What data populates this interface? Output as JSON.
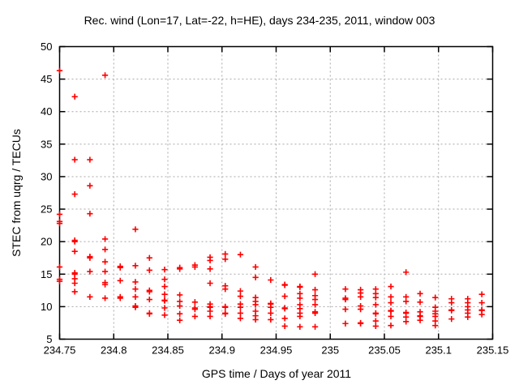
{
  "chart": {
    "title": "Rec. wind (Lon=17, Lat=-22, h=HE), days 234-235, 2011, window 003",
    "xlabel": "GPS time / Days of year 2011",
    "ylabel": "STEC from uqrg / TECUs"
  },
  "chart_data": {
    "type": "scatter",
    "title": "Rec. wind (Lon=17, Lat=-22, h=HE), days 234-235, 2011, window 003",
    "xlabel": "GPS time / Days of year 2011",
    "ylabel": "STEC from uqrg / TECUs",
    "xlim": [
      234.75,
      235.15
    ],
    "ylim": [
      5,
      50
    ],
    "xtick_values": [
      234.75,
      234.8,
      234.85,
      234.9,
      234.95,
      235,
      235.05,
      235.1,
      235.15
    ],
    "xtick_labels": [
      "234.75",
      "234.8",
      "234.85",
      "234.9",
      "234.95",
      "235",
      "235.05",
      "235.1",
      "235.15"
    ],
    "ytick_values": [
      5,
      10,
      15,
      20,
      25,
      30,
      35,
      40,
      45,
      50
    ],
    "ytick_labels": [
      "5",
      "10",
      "15",
      "20",
      "25",
      "30",
      "35",
      "40",
      "45",
      "50"
    ],
    "grid": true,
    "legend": "none",
    "marker": "plus",
    "marker_color": "#ff0000",
    "grid_color": "#a8a8a8",
    "axis_color": "#000000",
    "series": [
      {
        "name": "STEC",
        "columns": [
          {
            "x": 234.75,
            "values": [
              46.3,
              24.2,
              23.1,
              22.8,
              16.1,
              14.2,
              13.9
            ]
          },
          {
            "x": 234.764,
            "values": [
              42.3,
              32.6,
              27.3,
              20.2,
              20.0,
              18.5,
              15.2,
              15.0,
              14.3,
              13.6,
              12.3
            ]
          },
          {
            "x": 234.778,
            "values": [
              32.6,
              28.6,
              24.3,
              17.7,
              17.5,
              15.4,
              11.5
            ]
          },
          {
            "x": 234.792,
            "values": [
              45.6,
              20.4,
              18.8,
              16.9,
              15.4,
              13.7,
              13.4,
              11.3
            ]
          },
          {
            "x": 234.806,
            "values": [
              16.2,
              16.0,
              14.0,
              11.5,
              11.3
            ]
          },
          {
            "x": 234.82,
            "values": [
              21.9,
              16.3,
              13.8,
              12.7,
              11.5,
              10.1,
              9.9
            ]
          },
          {
            "x": 234.833,
            "values": [
              17.5,
              15.6,
              12.5,
              12.3,
              11.1,
              9.0,
              8.9
            ]
          },
          {
            "x": 234.847,
            "values": [
              15.7,
              14.2,
              13.1,
              11.9,
              11.0,
              10.9,
              9.8,
              8.7
            ]
          },
          {
            "x": 234.861,
            "values": [
              16.0,
              15.8,
              11.8,
              10.8,
              10.1,
              8.9,
              7.9
            ]
          },
          {
            "x": 234.875,
            "values": [
              16.4,
              16.1,
              10.7,
              9.8,
              9.6,
              8.5
            ]
          },
          {
            "x": 234.889,
            "values": [
              17.6,
              17.1,
              15.8,
              13.6,
              10.4,
              10.0,
              9.9,
              9.3,
              8.5
            ]
          },
          {
            "x": 234.903,
            "values": [
              18.1,
              17.3,
              13.2,
              12.7,
              10.0,
              9.9,
              9.0,
              8.9
            ]
          },
          {
            "x": 234.917,
            "values": [
              18.0,
              12.4,
              11.6,
              10.4,
              9.9,
              9.0,
              8.2
            ]
          },
          {
            "x": 234.931,
            "values": [
              16.1,
              14.5,
              11.4,
              10.8,
              10.3,
              9.3,
              8.6,
              8.0
            ]
          },
          {
            "x": 234.945,
            "values": [
              14.1,
              10.5,
              10.4,
              9.9,
              9.0,
              8.0
            ]
          },
          {
            "x": 234.958,
            "values": [
              13.4,
              13.3,
              11.6,
              9.8,
              9.7,
              8.2,
              7.0
            ]
          },
          {
            "x": 234.972,
            "values": [
              13.1,
              13.0,
              12.0,
              11.3,
              10.3,
              9.7,
              9.0,
              8.5,
              6.9
            ]
          },
          {
            "x": 234.986,
            "values": [
              15.0,
              12.6,
              11.7,
              11.1,
              10.3,
              9.2,
              9.0,
              6.9
            ]
          },
          {
            "x": 235.014,
            "values": [
              12.7,
              11.3,
              11.1,
              9.6,
              7.4
            ]
          },
          {
            "x": 235.028,
            "values": [
              12.6,
              12.1,
              11.5,
              10.1,
              9.6,
              7.5,
              7.4
            ]
          },
          {
            "x": 235.042,
            "values": [
              12.7,
              12.0,
              11.4,
              10.3,
              9.0,
              8.9,
              7.8,
              7.0
            ]
          },
          {
            "x": 235.056,
            "values": [
              13.1,
              11.5,
              10.6,
              9.4,
              9.3,
              8.5,
              7.1
            ]
          },
          {
            "x": 235.07,
            "values": [
              15.3,
              11.5,
              10.8,
              9.1,
              9.0,
              8.4,
              7.7
            ]
          },
          {
            "x": 235.083,
            "values": [
              12.0,
              10.7,
              9.2,
              8.6,
              8.5,
              7.9
            ]
          },
          {
            "x": 235.097,
            "values": [
              11.4,
              9.9,
              9.3,
              8.9,
              8.5,
              7.8,
              7.1
            ]
          },
          {
            "x": 235.112,
            "values": [
              11.2,
              10.6,
              9.5,
              9.4,
              8.1
            ]
          },
          {
            "x": 235.127,
            "values": [
              11.2,
              10.6,
              10.0,
              9.5,
              9.0,
              8.4
            ]
          },
          {
            "x": 235.14,
            "values": [
              11.9,
              10.6,
              9.5,
              9.4,
              8.8
            ]
          }
        ]
      }
    ]
  }
}
